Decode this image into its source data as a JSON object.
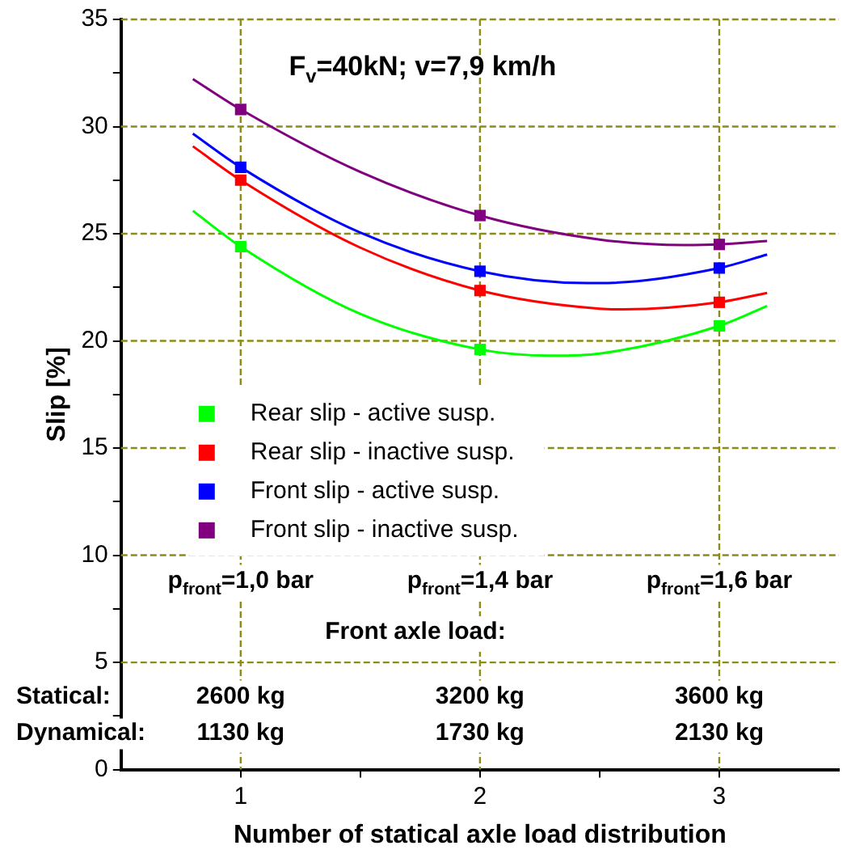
{
  "chart_data": {
    "type": "scatter",
    "title": "F$_{v}$=40kN; v=7,9 km/h",
    "xlabel": "Number of statical axle load distribution",
    "ylabel": "Slip [%]",
    "xlim": [
      0.5,
      3.5
    ],
    "xticks": [
      1,
      {
        "value": 1.5,
        "label": null
      },
      2,
      {
        "value": 2.5,
        "label": null
      },
      3
    ],
    "ylim": [
      0,
      35
    ],
    "yticks": [
      0,
      {
        "value": 2.5,
        "label": null
      },
      5,
      {
        "value": 7.5,
        "label": null
      },
      10,
      {
        "value": 12.5,
        "label": null
      },
      15,
      {
        "value": 17.5,
        "label": null
      },
      20,
      {
        "value": 22.5,
        "label": null
      },
      25,
      {
        "value": 27.5,
        "label": null
      },
      30,
      {
        "value": 32.5,
        "label": null
      },
      35
    ],
    "grid": true,
    "legend": "center left",
    "marker": "square",
    "series": [
      {
        "name": "Rear slip - active susp.",
        "color": "#00ff00",
        "x": [
          1,
          2,
          3
        ],
        "values": [
          24.4,
          19.6,
          20.7
        ]
      },
      {
        "name": "Rear slip - inactive susp.",
        "color": "#ff0000",
        "x": [
          1,
          2,
          3
        ],
        "values": [
          27.5,
          22.35,
          21.8
        ]
      },
      {
        "name": "Front slip - active susp.",
        "color": "#0000ff",
        "x": [
          1,
          2,
          3
        ],
        "values": [
          28.1,
          23.25,
          23.4
        ]
      },
      {
        "name": "Front slip - inactive susp.",
        "color": "#800080",
        "x": [
          1,
          2,
          3
        ],
        "values": [
          30.8,
          25.85,
          24.5
        ]
      },
      {
        "type": "line",
        "marker": "none",
        "color": "#00ff00",
        "x": [
          0.8,
          1,
          1.5,
          2,
          2.3,
          2.5,
          3,
          3.2
        ],
        "values": [
          26.07,
          24.4,
          21.26,
          19.6,
          19.31,
          19.41,
          20.7,
          21.63
        ]
      },
      {
        "type": "line",
        "marker": "none",
        "color": "#ff0000",
        "x": [
          0.8,
          1,
          1.5,
          2,
          2.5,
          2.6,
          3,
          3.2
        ],
        "values": [
          29.08,
          27.5,
          24.35,
          22.35,
          21.5,
          21.47,
          21.8,
          22.24
        ]
      },
      {
        "type": "line",
        "marker": "none",
        "color": "#0000ff",
        "x": [
          0.8,
          1,
          1.5,
          2,
          2.45,
          2.5,
          3,
          3.2
        ],
        "values": [
          29.67,
          28.1,
          25.05,
          23.25,
          22.7,
          22.7,
          23.4,
          24.03
        ]
      },
      {
        "type": "line",
        "marker": "none",
        "color": "#800080",
        "x": [
          0.8,
          1,
          1.5,
          2,
          2.5,
          2.85,
          3,
          3.2
        ],
        "values": [
          32.22,
          30.8,
          27.88,
          25.85,
          24.73,
          24.47,
          24.5,
          24.66
        ]
      }
    ],
    "annotations": [
      "p$_{front}$=1,0 bar",
      "p$_{front}$=1,4 bar",
      "p$_{front}$=1,6 bar",
      "Front axle load:",
      "Statical:",
      "2600 kg",
      "3200 kg",
      "3600 kg",
      "Dynamical:",
      "1130 kg",
      "1730 kg",
      "2130 kg"
    ]
  }
}
